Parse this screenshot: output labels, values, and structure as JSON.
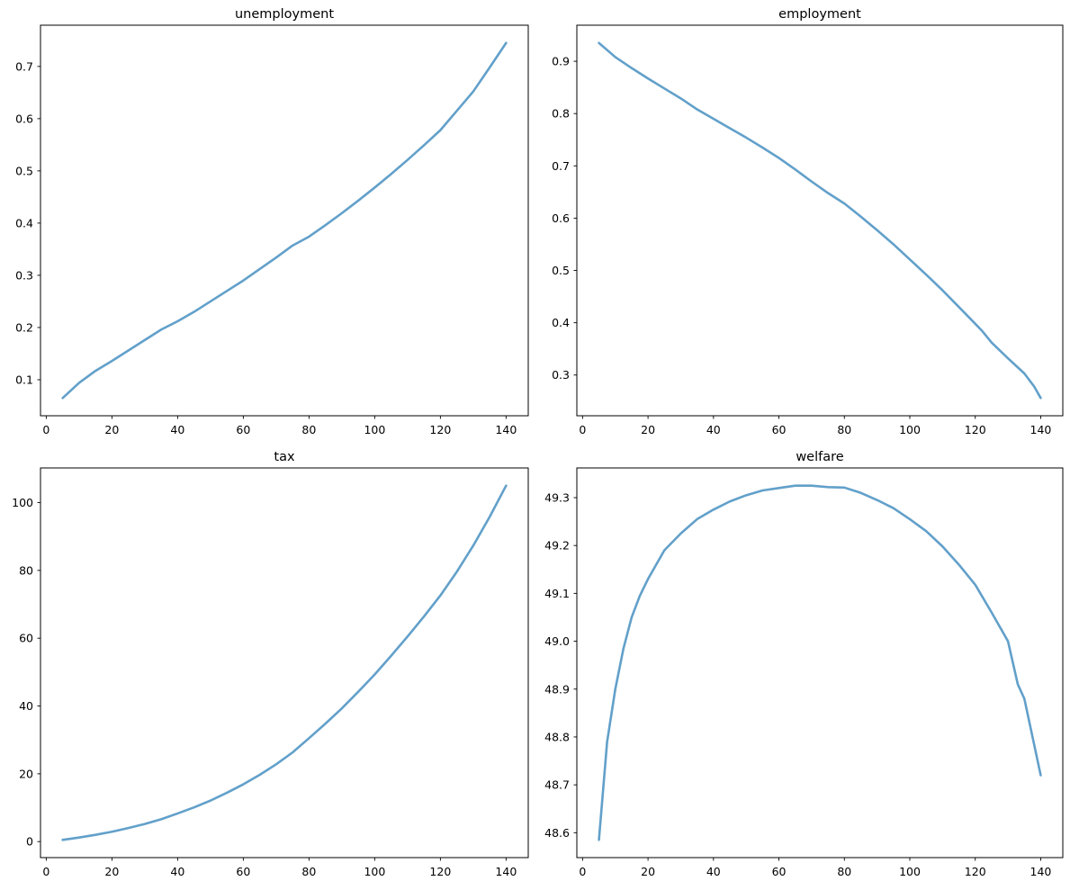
{
  "figure": {
    "background": "#ffffff",
    "line_color": "#62a0ca",
    "line_width": 2.6,
    "spine_color": "#000000"
  },
  "chart_data": [
    {
      "type": "line",
      "title": "unemployment",
      "xlabel": "",
      "ylabel": "",
      "grid": false,
      "legend": null,
      "xlim": [
        -1.75,
        146.75
      ],
      "ylim": [
        0.031,
        0.779
      ],
      "xticks": [
        0,
        20,
        40,
        60,
        80,
        100,
        120,
        140
      ],
      "xtick_labels": [
        "0",
        "20",
        "40",
        "60",
        "80",
        "100",
        "120",
        "140"
      ],
      "yticks": [
        0.1,
        0.2,
        0.3,
        0.4,
        0.5,
        0.6,
        0.7
      ],
      "ytick_labels": [
        "0.1",
        "0.2",
        "0.3",
        "0.4",
        "0.5",
        "0.6",
        "0.7"
      ],
      "x": [
        5,
        10,
        15,
        20,
        25,
        30,
        35,
        40,
        45,
        50,
        55,
        60,
        65,
        70,
        75,
        80,
        85,
        90,
        95,
        100,
        105,
        110,
        115,
        120,
        125,
        130,
        135,
        140
      ],
      "y": [
        0.065,
        0.094,
        0.117,
        0.136,
        0.156,
        0.176,
        0.196,
        0.212,
        0.23,
        0.25,
        0.27,
        0.29,
        0.312,
        0.334,
        0.357,
        0.374,
        0.396,
        0.419,
        0.443,
        0.468,
        0.494,
        0.521,
        0.549,
        0.578,
        0.615,
        0.652,
        0.698,
        0.745
      ]
    },
    {
      "type": "line",
      "title": "employment",
      "xlabel": "",
      "ylabel": "",
      "grid": false,
      "legend": null,
      "xlim": [
        -1.75,
        146.75
      ],
      "ylim": [
        0.2221,
        0.969
      ],
      "xticks": [
        0,
        20,
        40,
        60,
        80,
        100,
        120,
        140
      ],
      "xtick_labels": [
        "0",
        "20",
        "40",
        "60",
        "80",
        "100",
        "120",
        "140"
      ],
      "yticks": [
        0.3,
        0.4,
        0.5,
        0.6,
        0.7,
        0.8,
        0.9
      ],
      "ytick_labels": [
        "0.3",
        "0.4",
        "0.5",
        "0.6",
        "0.7",
        "0.8",
        "0.9"
      ],
      "x": [
        5,
        10,
        15,
        20,
        25,
        30,
        35,
        40,
        45,
        50,
        55,
        60,
        65,
        70,
        75,
        78,
        80,
        85,
        90,
        95,
        100,
        105,
        110,
        115,
        120,
        122,
        125,
        130,
        135,
        138,
        140
      ],
      "y": [
        0.935,
        0.908,
        0.887,
        0.867,
        0.848,
        0.829,
        0.808,
        0.79,
        0.772,
        0.754,
        0.735,
        0.715,
        0.693,
        0.67,
        0.648,
        0.636,
        0.628,
        0.603,
        0.577,
        0.55,
        0.521,
        0.492,
        0.462,
        0.43,
        0.398,
        0.385,
        0.362,
        0.332,
        0.303,
        0.278,
        0.256
      ]
    },
    {
      "type": "line",
      "title": "tax",
      "xlabel": "",
      "ylabel": "",
      "grid": false,
      "legend": null,
      "xlim": [
        -1.75,
        146.75
      ],
      "ylim": [
        -4.725,
        110.225
      ],
      "xticks": [
        0,
        20,
        40,
        60,
        80,
        100,
        120,
        140
      ],
      "xtick_labels": [
        "0",
        "20",
        "40",
        "60",
        "80",
        "100",
        "120",
        "140"
      ],
      "yticks": [
        0,
        20,
        40,
        60,
        80,
        100
      ],
      "ytick_labels": [
        "0",
        "20",
        "40",
        "60",
        "80",
        "100"
      ],
      "x": [
        5,
        10,
        15,
        20,
        25,
        30,
        35,
        40,
        45,
        50,
        55,
        60,
        65,
        70,
        75,
        80,
        85,
        90,
        95,
        100,
        105,
        110,
        115,
        120,
        125,
        130,
        135,
        140
      ],
      "y": [
        0.5,
        1.2,
        2.0,
        2.9,
        4.0,
        5.2,
        6.6,
        8.3,
        10.1,
        12.1,
        14.4,
        16.9,
        19.7,
        22.8,
        26.3,
        30.5,
        34.8,
        39.3,
        44.2,
        49.3,
        54.8,
        60.5,
        66.4,
        72.6,
        79.6,
        87.3,
        95.8,
        105.0
      ]
    },
    {
      "type": "line",
      "title": "welfare",
      "xlabel": "",
      "ylabel": "",
      "grid": false,
      "legend": null,
      "xlim": [
        -1.75,
        146.75
      ],
      "ylim": [
        48.548,
        49.362
      ],
      "xticks": [
        0,
        20,
        40,
        60,
        80,
        100,
        120,
        140
      ],
      "xtick_labels": [
        "0",
        "20",
        "40",
        "60",
        "80",
        "100",
        "120",
        "140"
      ],
      "yticks": [
        48.6,
        48.7,
        48.8,
        48.9,
        49.0,
        49.1,
        49.2,
        49.3
      ],
      "ytick_labels": [
        "48.6",
        "48.7",
        "48.8",
        "48.9",
        "49.0",
        "49.1",
        "49.2",
        "49.3"
      ],
      "x": [
        5,
        7.5,
        10,
        12.5,
        15,
        17.5,
        20,
        25,
        30,
        35,
        40,
        45,
        50,
        55,
        60,
        65,
        70,
        75,
        80,
        85,
        90,
        95,
        100,
        105,
        110,
        115,
        120,
        125,
        130,
        133,
        135,
        140
      ],
      "y": [
        48.585,
        48.79,
        48.9,
        48.985,
        49.05,
        49.095,
        49.13,
        49.19,
        49.225,
        49.255,
        49.275,
        49.292,
        49.305,
        49.315,
        49.32,
        49.325,
        49.325,
        49.322,
        49.321,
        49.31,
        49.295,
        49.278,
        49.255,
        49.23,
        49.198,
        49.16,
        49.118,
        49.06,
        49.0,
        48.91,
        48.88,
        48.72
      ]
    }
  ]
}
